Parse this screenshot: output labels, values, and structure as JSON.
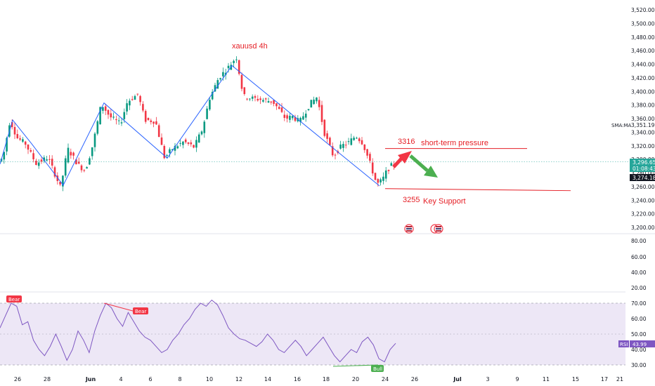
{
  "chart_data": [
    {
      "type": "candlestick",
      "title": "xauusd 4h",
      "ylim": [
        3196,
        3530
      ],
      "y_ticks": [
        "3,200.00",
        "3,220.00",
        "3,240.00",
        "3,260.00",
        "3,280.00",
        "3,300.00",
        "3,320.00",
        "3,340.00",
        "3,360.00",
        "3,380.00",
        "3,400.00",
        "3,420.00",
        "3,440.00",
        "3,460.00",
        "3,480.00",
        "3,500.00",
        "3,520.00"
      ],
      "x_ticks": [
        "26",
        "28",
        "Jun",
        "4",
        "6",
        "8",
        "10",
        "12",
        "14",
        "16",
        "18",
        "20",
        "24",
        "26",
        "Jul",
        "3",
        "9",
        "11",
        "15",
        "17",
        "21"
      ],
      "price_path": [
        [
          0,
          3296
        ],
        [
          8,
          3302
        ],
        [
          18,
          3358
        ],
        [
          28,
          3332
        ],
        [
          40,
          3323
        ],
        [
          55,
          3294
        ],
        [
          72,
          3303
        ],
        [
          90,
          3258
        ],
        [
          100,
          3316
        ],
        [
          115,
          3292
        ],
        [
          125,
          3283
        ],
        [
          136,
          3322
        ],
        [
          148,
          3382
        ],
        [
          160,
          3363
        ],
        [
          175,
          3352
        ],
        [
          185,
          3385
        ],
        [
          200,
          3396
        ],
        [
          210,
          3358
        ],
        [
          225,
          3356
        ],
        [
          238,
          3302
        ],
        [
          248,
          3315
        ],
        [
          265,
          3326
        ],
        [
          280,
          3318
        ],
        [
          292,
          3345
        ],
        [
          302,
          3390
        ],
        [
          315,
          3420
        ],
        [
          330,
          3437
        ],
        [
          340,
          3451
        ],
        [
          350,
          3393
        ],
        [
          362,
          3390
        ],
        [
          375,
          3388
        ],
        [
          392,
          3385
        ],
        [
          400,
          3374
        ],
        [
          410,
          3360
        ],
        [
          420,
          3363
        ],
        [
          430,
          3355
        ],
        [
          445,
          3382
        ],
        [
          455,
          3392
        ],
        [
          465,
          3340
        ],
        [
          478,
          3305
        ],
        [
          490,
          3320
        ],
        [
          500,
          3325
        ],
        [
          510,
          3335
        ],
        [
          520,
          3324
        ],
        [
          530,
          3295
        ],
        [
          540,
          3263
        ],
        [
          548,
          3270
        ],
        [
          555,
          3285
        ],
        [
          563,
          3293
        ]
      ],
      "last_price": "3,296.65",
      "countdown": "01:08:43",
      "sma_value": "3,274.18",
      "sma_label": "SMA:MA",
      "sma_readout": "3,351.19",
      "resistance": {
        "value": "3316",
        "label": "short-term pressure"
      },
      "support": {
        "value": "3255",
        "label": "Key Support"
      },
      "trend_lines": [
        [
          [
            0,
            3293
          ],
          [
            18,
            3358
          ],
          [
            45,
            3323
          ],
          [
            90,
            3262
          ],
          [
            148,
            3383
          ],
          [
            238,
            3302
          ],
          [
            330,
            3438
          ],
          [
            540,
            3261
          ]
        ]
      ],
      "colors": {
        "up": "#089981",
        "down": "#f23645",
        "line": "#2962ff",
        "annotation": "#e51e25",
        "arrow_up": "#f23645",
        "arrow_down": "#4caf50"
      }
    },
    {
      "type": "line",
      "series": [
        {
          "name": "RSI",
          "values": [
            54,
            62,
            70,
            68,
            56,
            58,
            46,
            40,
            36,
            42,
            50,
            42,
            33,
            40,
            52,
            46,
            38,
            52,
            62,
            70,
            67,
            60,
            55,
            64,
            58,
            52,
            48,
            46,
            42,
            38,
            40,
            46,
            50,
            56,
            60,
            66,
            70,
            68,
            72,
            69,
            62,
            54,
            50,
            47,
            46,
            44,
            42,
            45,
            50,
            46,
            40,
            38,
            42,
            46,
            42,
            36,
            40,
            44,
            48,
            42,
            36,
            32,
            36,
            40,
            38,
            45,
            48,
            43,
            34,
            32,
            40,
            44
          ]
        }
      ],
      "ylim": [
        26,
        92
      ],
      "y_ticks": [
        "20.00",
        "30.00",
        "40.00",
        "50.00",
        "60.00",
        "70.00",
        "80.00"
      ],
      "rsi_label": "RSI",
      "rsi_value": "43.99",
      "bands": {
        "upper": 70,
        "middle": 50,
        "lower": 30
      },
      "divergence_tags": [
        "Bear",
        "Bear",
        "Bull"
      ],
      "colors": {
        "line": "#7e57c2",
        "band_fill": "#ede7f6",
        "bear": "#f23645",
        "bull": "#4caf50"
      }
    }
  ]
}
